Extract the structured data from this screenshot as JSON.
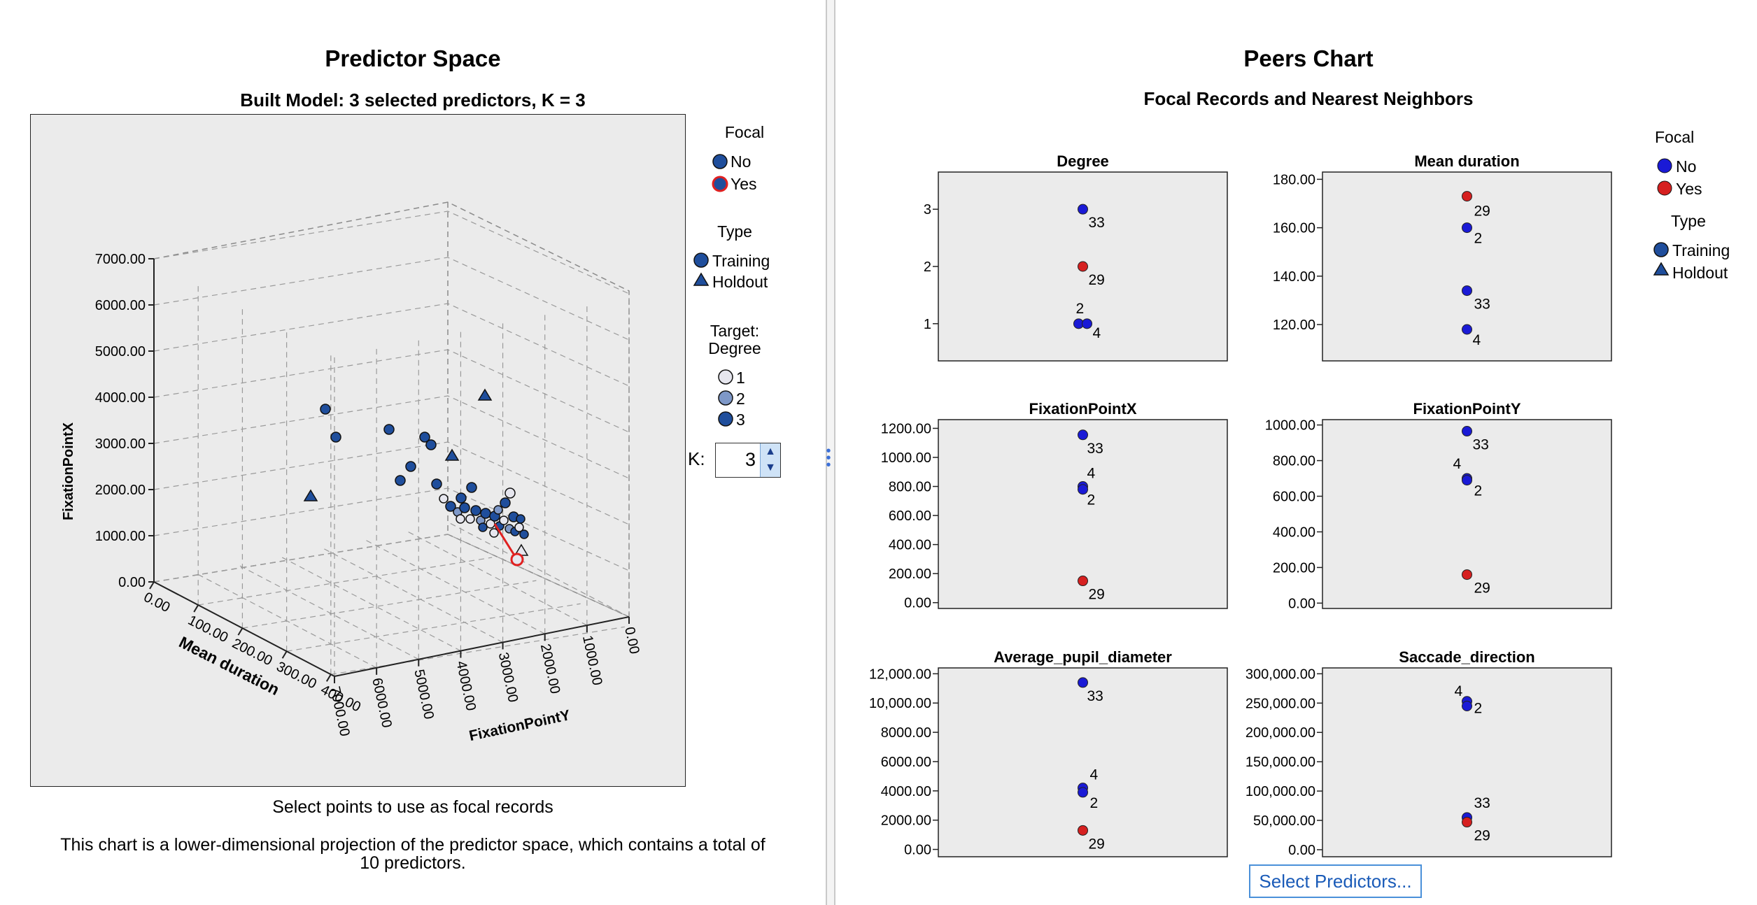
{
  "left": {
    "title": "Predictor Space",
    "subtitle": "Built Model: 3 selected predictors, K = 3",
    "legend": {
      "focal_title": "Focal",
      "focal_no": "No",
      "focal_yes": "Yes",
      "type_title": "Type",
      "type_training": "Training",
      "type_holdout": "Holdout",
      "target_title_1": "Target:",
      "target_title_2": "Degree",
      "target_1": "1",
      "target_2": "2",
      "target_3": "3"
    },
    "k_label": "K:",
    "k_value": "3",
    "caption": "Select points to use as focal records",
    "note_1": "This chart is a lower-dimensional projection of the predictor space, which contains a total of",
    "note_2": "10 predictors."
  },
  "right": {
    "title": "Peers Chart",
    "subtitle": "Focal Records and Nearest Neighbors",
    "legend": {
      "focal_title": "Focal",
      "focal_no": "No",
      "focal_yes": "Yes",
      "type_title": "Type",
      "type_training": "Training",
      "type_holdout": "Holdout"
    },
    "select_button": "Select Predictors..."
  },
  "colors": {
    "no": "#1a1ad6",
    "yes": "#d62020",
    "training": "#1f4e9c",
    "panel": "#ebebeb"
  },
  "chart_data": [
    {
      "type": "scatter",
      "title": "Predictor Space (3D)",
      "xlabel": "Mean duration",
      "ylabel": "FixationPointY",
      "zlabel": "FixationPointX",
      "x_ticks": [
        "0.00",
        "100.00",
        "200.00",
        "300.00",
        "400.00"
      ],
      "y_ticks": [
        "7000.00",
        "6000.00",
        "5000.00",
        "4000.00",
        "3000.00",
        "2000.00",
        "1000.00",
        "0.00"
      ],
      "z_ticks": [
        "0.00",
        "1000.00",
        "2000.00",
        "3000.00",
        "4000.00",
        "5000.00",
        "6000.00",
        "7000.00"
      ]
    },
    {
      "type": "scatter",
      "title": "Degree",
      "ylim": [
        0.35,
        3.65
      ],
      "ticks": [
        1,
        2,
        3
      ],
      "tick_labels": [
        "1",
        "2",
        "3"
      ],
      "points": [
        {
          "label": "33",
          "value": 3,
          "focal": false
        },
        {
          "label": "29",
          "value": 2,
          "focal": true
        },
        {
          "label": "2",
          "value": 1,
          "focal": false
        },
        {
          "label": "4",
          "value": 1,
          "focal": false
        }
      ]
    },
    {
      "type": "scatter",
      "title": "Mean duration",
      "ylim": [
        105,
        183
      ],
      "ticks": [
        120,
        140,
        160,
        180
      ],
      "tick_labels": [
        "120.00",
        "140.00",
        "160.00",
        "180.00"
      ],
      "points": [
        {
          "label": "29",
          "value": 173,
          "focal": true
        },
        {
          "label": "2",
          "value": 160,
          "focal": false
        },
        {
          "label": "33",
          "value": 134,
          "focal": false
        },
        {
          "label": "4",
          "value": 118,
          "focal": false
        }
      ]
    },
    {
      "type": "scatter",
      "title": "FixationPointX",
      "ylim": [
        -40,
        1260
      ],
      "ticks": [
        0,
        200,
        400,
        600,
        800,
        1000,
        1200
      ],
      "tick_labels": [
        "0.00",
        "200.00",
        "400.00",
        "600.00",
        "800.00",
        "1000.00",
        "1200.00"
      ],
      "points": [
        {
          "label": "33",
          "value": 1155,
          "focal": false
        },
        {
          "label": "4",
          "value": 800,
          "focal": false
        },
        {
          "label": "2",
          "value": 780,
          "focal": false
        },
        {
          "label": "29",
          "value": 150,
          "focal": true
        }
      ]
    },
    {
      "type": "scatter",
      "title": "FixationPointY",
      "ylim": [
        -30,
        1030
      ],
      "ticks": [
        0,
        200,
        400,
        600,
        800,
        1000
      ],
      "tick_labels": [
        "0.00",
        "200.00",
        "400.00",
        "600.00",
        "800.00",
        "1000.00"
      ],
      "points": [
        {
          "label": "33",
          "value": 965,
          "focal": false
        },
        {
          "label": "4",
          "value": 700,
          "focal": false
        },
        {
          "label": "2",
          "value": 690,
          "focal": false
        },
        {
          "label": "29",
          "value": 160,
          "focal": true
        }
      ]
    },
    {
      "type": "scatter",
      "title": "Average_pupil_diameter",
      "ylim": [
        -500,
        12400
      ],
      "ticks": [
        0,
        2000,
        4000,
        6000,
        8000,
        10000,
        12000
      ],
      "tick_labels": [
        "0.00",
        "2000.00",
        "4000.00",
        "6000.00",
        "8000.00",
        "10,000.00",
        "12,000.00"
      ],
      "points": [
        {
          "label": "33",
          "value": 11400,
          "focal": false
        },
        {
          "label": "4",
          "value": 4200,
          "focal": false
        },
        {
          "label": "2",
          "value": 3900,
          "focal": false
        },
        {
          "label": "29",
          "value": 1300,
          "focal": true
        }
      ]
    },
    {
      "type": "scatter",
      "title": "Saccade_direction",
      "ylim": [
        -12000,
        310000
      ],
      "ticks": [
        0,
        50000,
        100000,
        150000,
        200000,
        250000,
        300000
      ],
      "tick_labels": [
        "0.00",
        "50,000.00",
        "100,000.00",
        "150,000.00",
        "200,000.00",
        "250,000.00",
        "300,000.00"
      ],
      "points": [
        {
          "label": "4",
          "value": 253000,
          "focal": false
        },
        {
          "label": "2",
          "value": 245000,
          "focal": false
        },
        {
          "label": "33",
          "value": 55000,
          "focal": false
        },
        {
          "label": "29",
          "value": 47000,
          "focal": true
        }
      ]
    }
  ]
}
